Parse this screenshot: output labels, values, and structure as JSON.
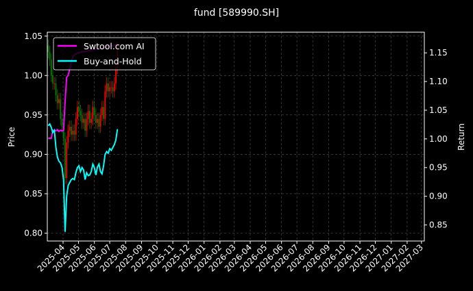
{
  "chart_data": {
    "type": "candlestick+line",
    "title": "fund [589990.SH]",
    "ylabel_left": "Price",
    "ylabel_right": "Return",
    "ylim_left": [
      0.79,
      1.055
    ],
    "ylim_right": [
      0.822,
      1.186
    ],
    "yticks_left": [
      "0.80",
      "0.85",
      "0.90",
      "0.95",
      "1.00",
      "1.05"
    ],
    "yticks_right": [
      "0.85",
      "0.90",
      "0.95",
      "1.00",
      "1.05",
      "1.10",
      "1.15"
    ],
    "xticks": [
      "2025-04",
      "2025-05",
      "2025-06",
      "2025-07",
      "2025-08",
      "2025-09",
      "2025-10",
      "2025-11",
      "2025-12",
      "2026-01",
      "2026-02",
      "2026-03",
      "2026-04",
      "2026-05",
      "2026-06",
      "2026-07",
      "2026-08",
      "2026-09",
      "2026-10",
      "2026-11",
      "2026-12",
      "2027-01",
      "2027-02",
      "2027-03"
    ],
    "grid": true,
    "legend_position": "top-left",
    "up_color": "#ff0000",
    "down_color": "#008000",
    "dates": [
      "2025-03-03",
      "2025-03-06",
      "2025-03-09",
      "2025-03-12",
      "2025-03-15",
      "2025-03-18",
      "2025-03-21",
      "2025-03-24",
      "2025-03-27",
      "2025-03-30",
      "2025-04-02",
      "2025-04-05",
      "2025-04-08",
      "2025-04-11",
      "2025-04-14",
      "2025-04-17",
      "2025-04-20",
      "2025-04-23",
      "2025-04-26",
      "2025-04-29",
      "2025-05-02",
      "2025-05-05",
      "2025-05-08",
      "2025-05-11",
      "2025-05-14",
      "2025-05-17",
      "2025-05-20",
      "2025-05-23",
      "2025-05-26",
      "2025-05-29",
      "2025-06-01",
      "2025-06-04",
      "2025-06-07",
      "2025-06-10",
      "2025-06-13",
      "2025-06-16",
      "2025-06-19",
      "2025-06-22",
      "2025-06-25",
      "2025-06-28",
      "2025-07-01",
      "2025-07-04",
      "2025-07-07",
      "2025-07-10",
      "2025-07-13",
      "2025-07-16"
    ],
    "close": [
      1.03,
      1.02,
      1.0,
      0.99,
      0.99,
      0.975,
      0.965,
      0.97,
      0.945,
      0.935,
      0.92,
      0.87,
      0.915,
      0.93,
      0.935,
      0.925,
      0.93,
      0.925,
      0.945,
      0.96,
      0.955,
      0.95,
      0.94,
      0.945,
      0.93,
      0.945,
      0.955,
      0.94,
      0.945,
      0.96,
      0.95,
      0.94,
      0.945,
      0.935,
      0.95,
      0.96,
      0.945,
      0.98,
      0.99,
      0.98,
      0.985,
      0.985,
      0.98,
      0.99,
      1.01,
      1.035
    ],
    "series": [
      {
        "name": "Swtool.com AI",
        "color": "#ff00ff",
        "values": [
          1.001,
          1.001,
          1.001,
          1.015,
          1.015,
          1.014,
          1.016,
          1.013,
          1.015,
          1.014,
          1.015,
          1.066,
          1.107,
          1.111,
          1.122,
          1.134,
          1.143,
          1.146,
          1.148,
          1.15,
          1.15,
          1.151,
          1.152,
          1.152,
          1.152,
          1.153,
          1.154,
          1.154,
          1.154,
          1.156,
          1.156,
          1.156,
          1.157,
          1.157,
          1.157,
          1.158,
          1.158,
          1.16,
          1.161,
          1.161,
          1.162,
          1.162,
          1.162,
          1.163,
          1.164,
          1.167
        ]
      },
      {
        "name": "Buy-and-Hold",
        "color": "#00ffff",
        "values": [
          1.023,
          1.026,
          1.02,
          1.011,
          1.015,
          0.986,
          0.968,
          0.961,
          0.958,
          0.95,
          0.929,
          0.838,
          0.9,
          0.919,
          0.924,
          0.929,
          0.931,
          0.929,
          0.941,
          0.95,
          0.953,
          0.943,
          0.95,
          0.946,
          0.929,
          0.941,
          0.936,
          0.937,
          0.943,
          0.956,
          0.95,
          0.937,
          0.951,
          0.956,
          0.943,
          0.939,
          0.953,
          0.973,
          0.978,
          0.975,
          0.983,
          0.98,
          0.985,
          0.99,
          0.998,
          1.017
        ]
      }
    ]
  }
}
